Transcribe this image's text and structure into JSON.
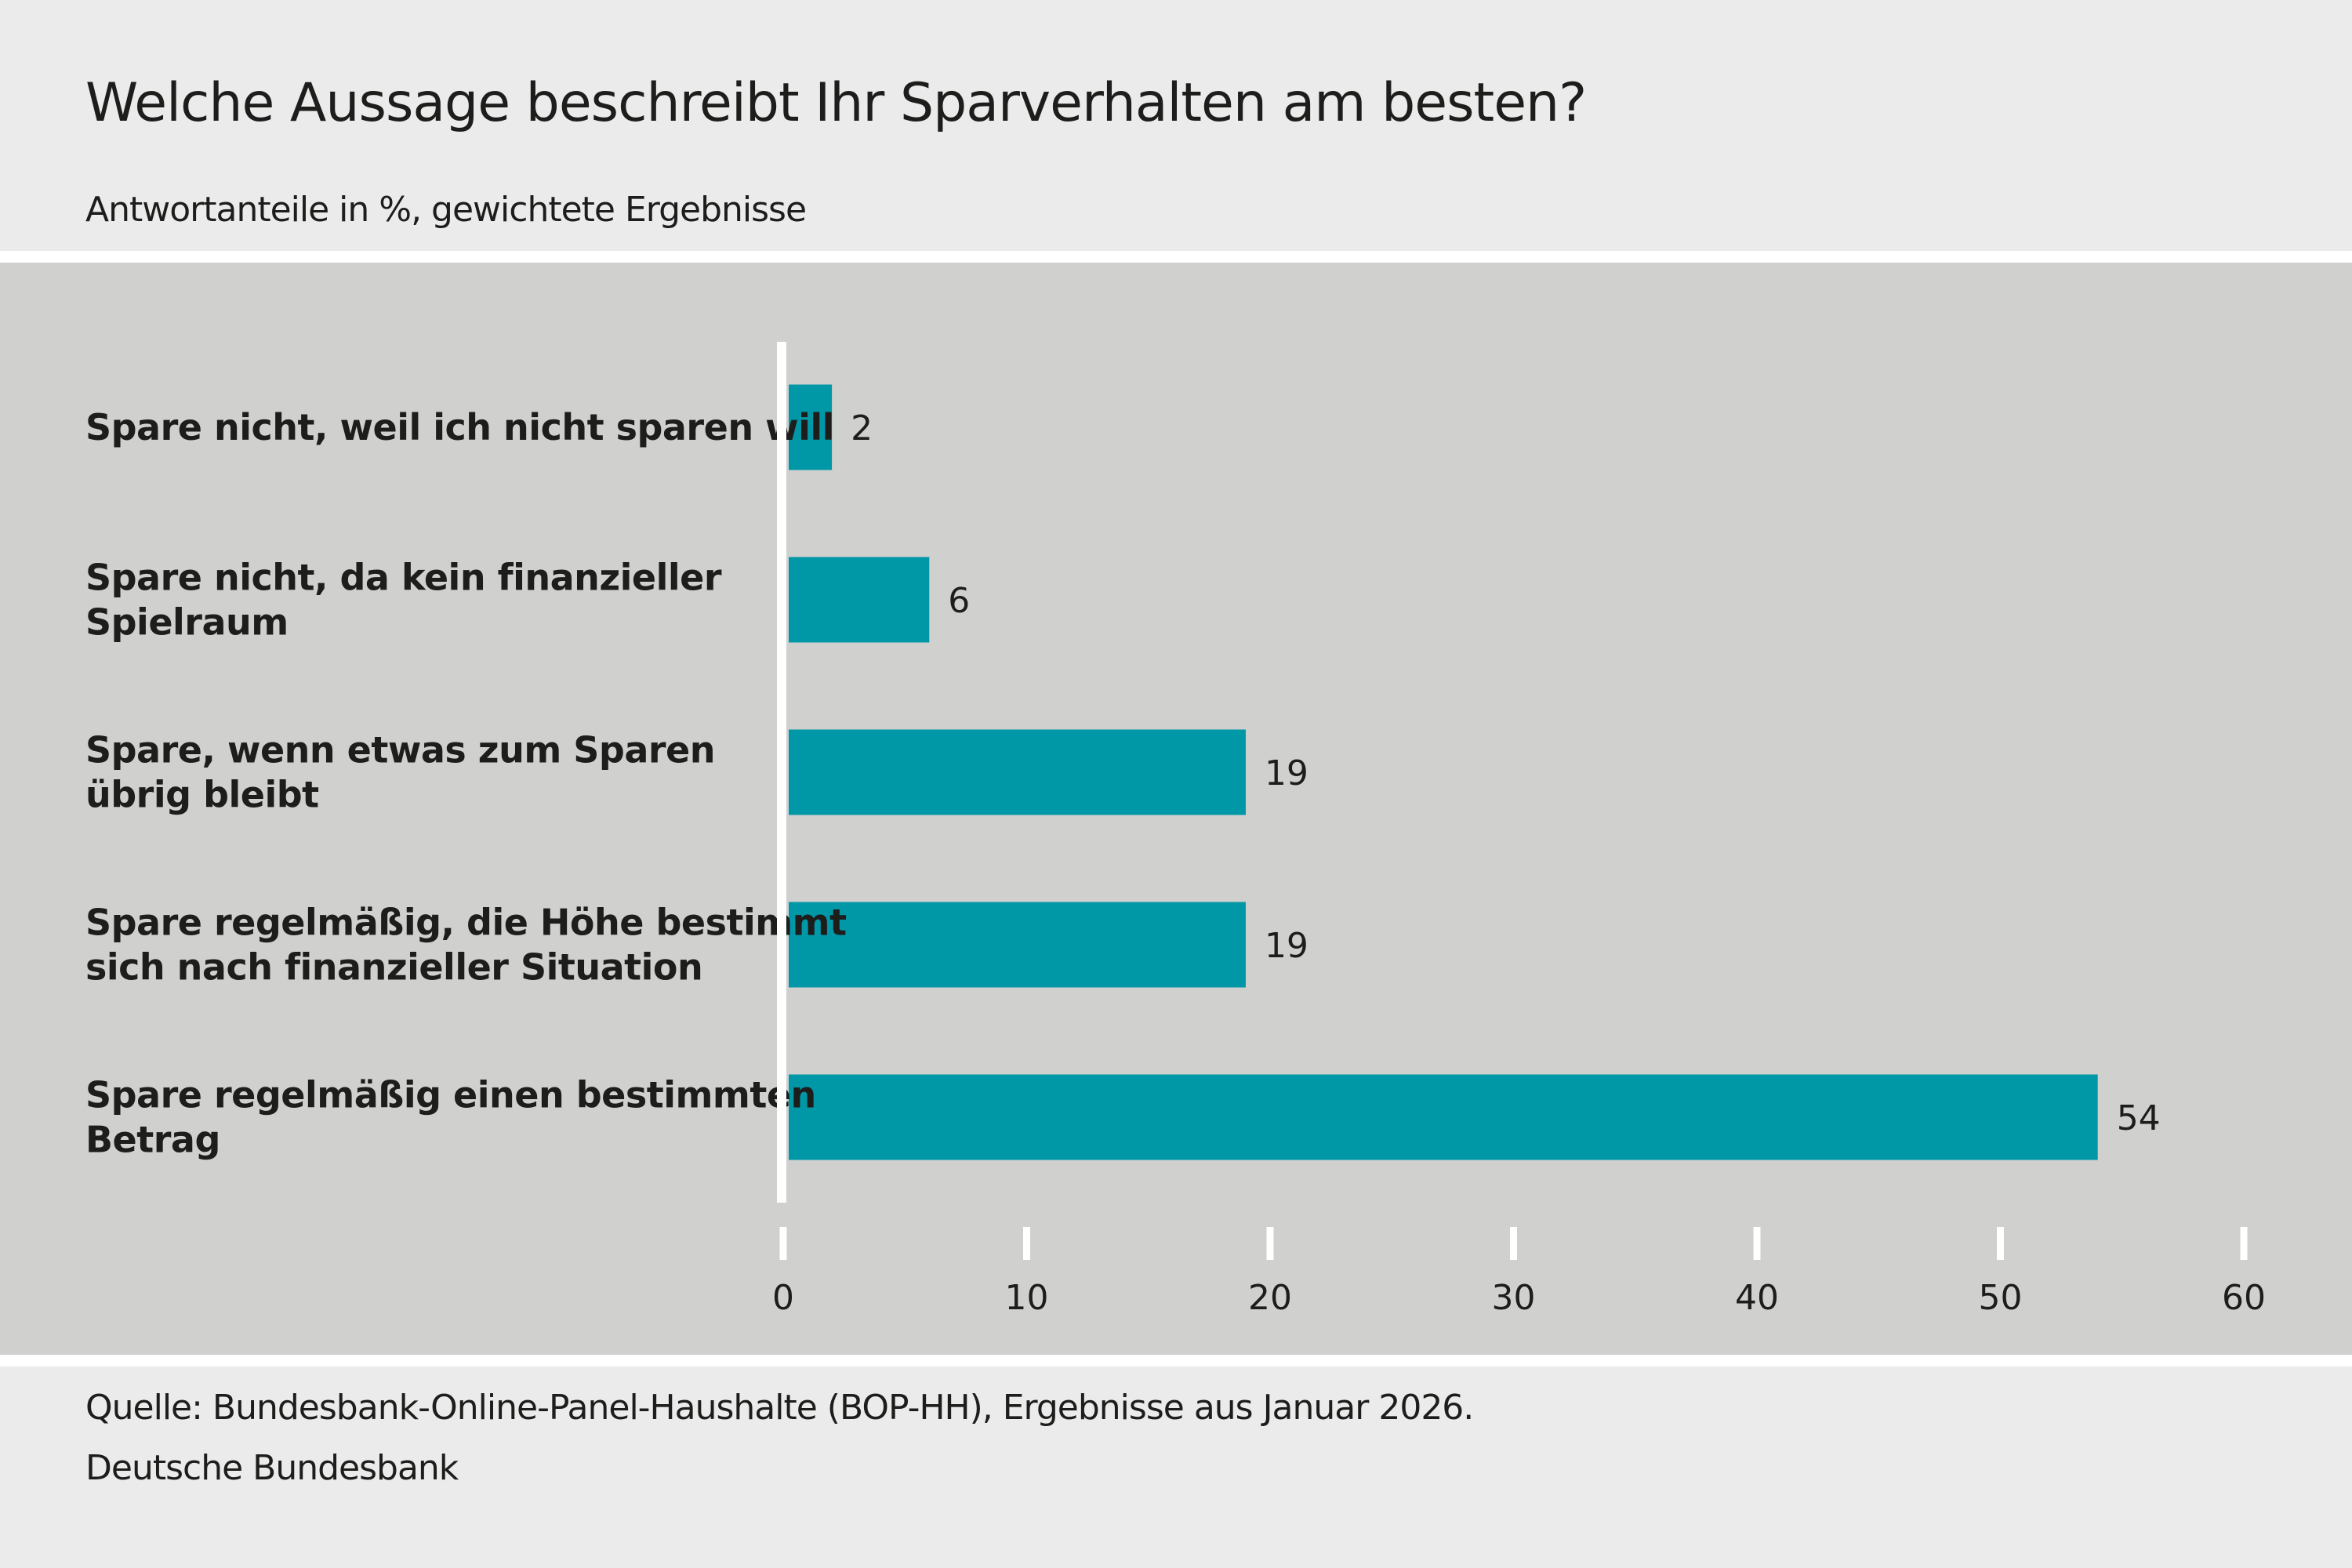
{
  "title": "Welche Aussage beschreibt Ihr Sparverhalten am besten?",
  "subtitle": "Antwortanteile in %, gewichtete Ergebnisse",
  "footer": {
    "source": "Quelle: Bundesbank-Online-Panel-Haushalte (BOP-HH), Ergebnisse aus Januar 2026.",
    "publisher": "Deutsche Bundesbank"
  },
  "colors": {
    "bar": "#0097a7",
    "plot_bg": "#d0d0ce",
    "page_bg": "#ebebeb"
  },
  "chart_data": {
    "type": "bar",
    "orientation": "horizontal",
    "title": "Welche Aussage beschreibt Ihr Sparverhalten am besten?",
    "subtitle": "Antwortanteile in %, gewichtete Ergebnisse",
    "categories": [
      [
        "Spare nicht, weil ich nicht sparen will"
      ],
      [
        "Spare nicht, da kein finanzieller",
        "Spielraum"
      ],
      [
        "Spare, wenn etwas zum Sparen",
        "übrig bleibt"
      ],
      [
        "Spare regelmäßig, die Höhe bestimmt",
        "sich nach finanzieller Situation"
      ],
      [
        "Spare regelmäßig einen bestimmten",
        "Betrag"
      ]
    ],
    "values": [
      2,
      6,
      19,
      19,
      54
    ],
    "xlim": [
      0,
      60
    ],
    "xticks": [
      0,
      10,
      20,
      30,
      40,
      50,
      60
    ],
    "xlabel": "",
    "ylabel": "",
    "grid": false,
    "data_labels": true
  }
}
